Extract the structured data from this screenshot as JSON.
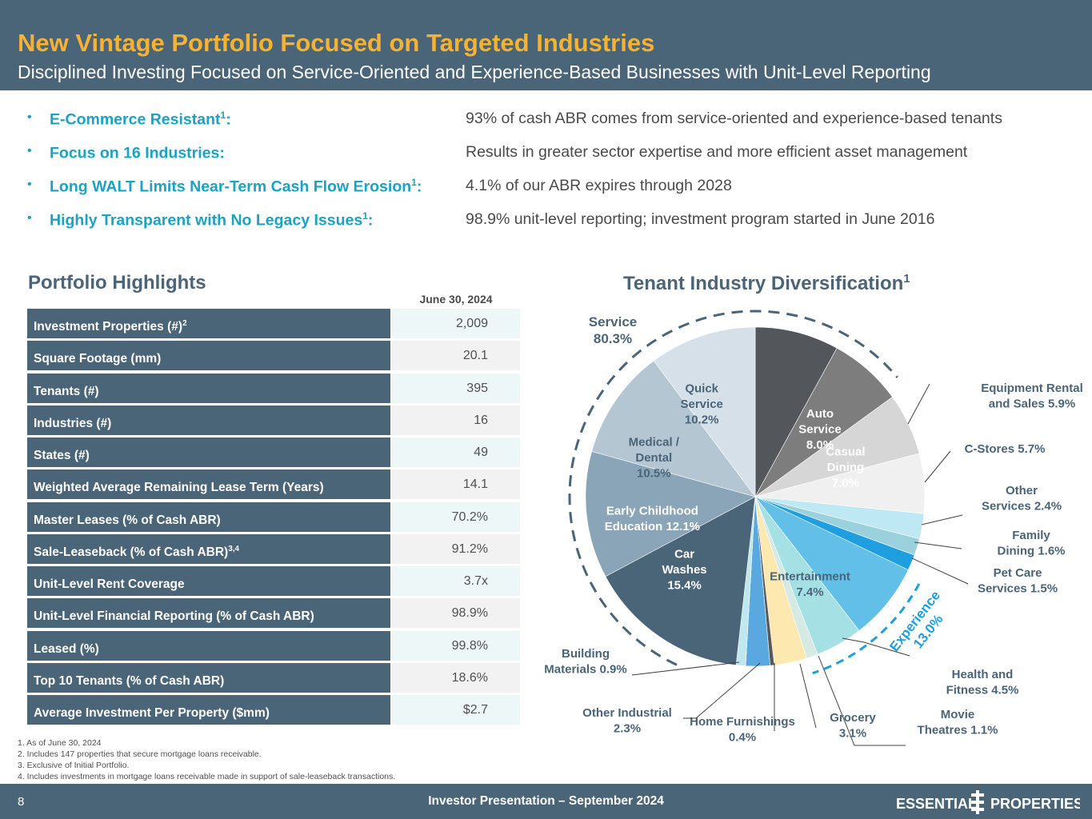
{
  "header": {
    "title": "New Vintage Portfolio Focused on Targeted Industries",
    "subtitle": "Disciplined Investing Focused on Service-Oriented and Experience-Based Businesses with Unit-Level Reporting"
  },
  "bullets": [
    {
      "label": "E-Commerce Resistant",
      "sup": "1",
      "colon": ":",
      "value": "93% of cash ABR comes from service-oriented and experience-based tenants"
    },
    {
      "label": "Focus on 16 Industries:",
      "sup": "",
      "colon": "",
      "value": "Results in greater sector expertise and more efficient asset management"
    },
    {
      "label": "Long WALT Limits Near-Term Cash Flow Erosion",
      "sup": "1",
      "colon": ":",
      "value": "4.1% of our ABR expires through 2028"
    },
    {
      "label": "Highly Transparent with No Legacy Issues",
      "sup": "1",
      "colon": ":",
      "value": "98.9% unit-level reporting; investment program started in June 2016"
    }
  ],
  "highlights": {
    "title": "Portfolio Highlights",
    "date_header": "June 30, 2024",
    "rows": [
      {
        "label": "Investment Properties (#)",
        "sup": "2",
        "value": "2,009"
      },
      {
        "label": "Square Footage (mm)",
        "sup": "",
        "value": "20.1"
      },
      {
        "label": "Tenants (#)",
        "sup": "",
        "value": "395"
      },
      {
        "label": "Industries (#)",
        "sup": "",
        "value": "16"
      },
      {
        "label": "States (#)",
        "sup": "",
        "value": "49"
      },
      {
        "label": "Weighted Average Remaining Lease Term (Years)",
        "sup": "",
        "value": "14.1"
      },
      {
        "label": "Master Leases (% of Cash ABR)",
        "sup": "",
        "value": "70.2%"
      },
      {
        "label": "Sale-Leaseback (% of Cash ABR)",
        "sup": "3,4",
        "value": "91.2%"
      },
      {
        "label": "Unit-Level Rent Coverage",
        "sup": "",
        "value": "3.7x"
      },
      {
        "label": "Unit-Level Financial Reporting (% of Cash ABR)",
        "sup": "",
        "value": "98.9%"
      },
      {
        "label": "Leased (%)",
        "sup": "",
        "value": "99.8%"
      },
      {
        "label": "Top 10 Tenants (% of Cash ABR)",
        "sup": "",
        "value": "18.6%"
      },
      {
        "label": "Average Investment Per Property ($mm)",
        "sup": "",
        "value": "$2.7"
      }
    ]
  },
  "footnotes": [
    "1.  As of June 30, 2024",
    "2.  Includes 147 properties that secure mortgage loans receivable.",
    "3.  Exclusive of Initial Portfolio.",
    "4.  Includes investments in mortgage loans receivable made in support of sale-leaseback transactions."
  ],
  "chart_title": {
    "text": "Tenant Industry Diversification",
    "sup": "1"
  },
  "chart_data": {
    "type": "pie",
    "title": "Tenant Industry Diversification",
    "slices": [
      {
        "name": "Auto Service",
        "value": 8.0,
        "color": "#53575c",
        "label_lines": [
          "Auto",
          "Service",
          "8.0%"
        ],
        "label_color": "#ffffff",
        "label_mode": "inside"
      },
      {
        "name": "Casual Dining",
        "value": 7.0,
        "color": "#7d7d7d",
        "label_lines": [
          "Casual",
          "Dining",
          "7.0%"
        ],
        "label_color": "#ffffff",
        "label_mode": "inside"
      },
      {
        "name": "Equipment Rental and Sales",
        "value": 5.9,
        "color": "#d6d6d6",
        "label_lines": [
          "Equipment Rental",
          "and Sales 5.9%"
        ],
        "label_color": "#4a6478",
        "label_mode": "outside"
      },
      {
        "name": "C-Stores",
        "value": 5.7,
        "color": "#f0f0f0",
        "label_lines": [
          "C-Stores 5.7%"
        ],
        "label_color": "#4a6478",
        "label_mode": "outside"
      },
      {
        "name": "Other Services",
        "value": 2.4,
        "color": "#bde8f4",
        "label_lines": [
          "Other",
          "Services 2.4%"
        ],
        "label_color": "#4a6478",
        "label_mode": "outside"
      },
      {
        "name": "Family Dining",
        "value": 1.6,
        "color": "#9bd0dd",
        "label_lines": [
          "Family",
          "Dining 1.6%"
        ],
        "label_color": "#4a6478",
        "label_mode": "outside"
      },
      {
        "name": "Pet Care Services",
        "value": 1.5,
        "color": "#1f9ee0",
        "label_lines": [
          "Pet Care",
          "Services 1.5%"
        ],
        "label_color": "#4a6478",
        "label_mode": "outside"
      },
      {
        "name": "Entertainment",
        "value": 7.4,
        "color": "#62bfe8",
        "label_lines": [
          "Entertainment",
          "7.4%"
        ],
        "label_color": "#4a6478",
        "label_mode": "inside"
      },
      {
        "name": "Health and Fitness",
        "value": 4.5,
        "color": "#a5e1e4",
        "label_lines": [
          "Health and",
          "Fitness 4.5%"
        ],
        "label_color": "#4a6478",
        "label_mode": "outside"
      },
      {
        "name": "Movie Theatres",
        "value": 1.1,
        "color": "#d5eae3",
        "label_lines": [
          "Movie",
          "Theatres 1.1%"
        ],
        "label_color": "#4a6478",
        "label_mode": "outside"
      },
      {
        "name": "Grocery",
        "value": 3.1,
        "color": "#fde8b0",
        "label_lines": [
          "Grocery",
          "3.1%"
        ],
        "label_color": "#4a6478",
        "label_mode": "outside"
      },
      {
        "name": "Home Furnishings",
        "value": 0.4,
        "color": "#595959",
        "label_lines": [
          "Home Furnishings",
          "0.4%"
        ],
        "label_color": "#4a6478",
        "label_mode": "outside"
      },
      {
        "name": "Other Industrial",
        "value": 2.3,
        "color": "#5aa8e0",
        "label_lines": [
          "Other Industrial",
          "2.3%"
        ],
        "label_color": "#4a6478",
        "label_mode": "outside"
      },
      {
        "name": "Building Materials",
        "value": 0.9,
        "color": "#bfe8ee",
        "label_lines": [
          "Building",
          "Materials 0.9%"
        ],
        "label_color": "#4a6478",
        "label_mode": "outside"
      },
      {
        "name": "Car Washes",
        "value": 15.4,
        "color": "#4a6478",
        "label_lines": [
          "Car",
          "Washes",
          "15.4%"
        ],
        "label_color": "#ffffff",
        "label_mode": "inside"
      },
      {
        "name": "Early Childhood Education",
        "value": 12.1,
        "color": "#8aa5b7",
        "label_lines": [
          "Early Childhood",
          "Education 12.1%"
        ],
        "label_color": "#ffffff",
        "label_mode": "inside"
      },
      {
        "name": "Medical / Dental",
        "value": 10.5,
        "color": "#b3c6d2",
        "label_lines": [
          "Medical /",
          "Dental",
          "10.5%"
        ],
        "label_color": "#4a6478",
        "label_mode": "inside"
      },
      {
        "name": "Quick Service",
        "value": 10.2,
        "color": "#d5e0e8",
        "label_lines": [
          "Quick",
          "Service",
          "10.2%"
        ],
        "label_color": "#4a6478",
        "label_mode": "inside"
      }
    ],
    "groups": [
      {
        "name": "Service",
        "value": "80.3%",
        "label": "Service",
        "pct_label": "80.3%",
        "color": "#4a6478"
      },
      {
        "name": "Experience",
        "value": "13.0%",
        "label": "Experience",
        "pct_label": "13.0%",
        "color": "#1f9ee0"
      }
    ]
  },
  "footer": {
    "page_number": "8",
    "text": "Investor Presentation – September 2024",
    "logo_left": "ESSENTIAL",
    "logo_right": "PROPERTIES"
  }
}
